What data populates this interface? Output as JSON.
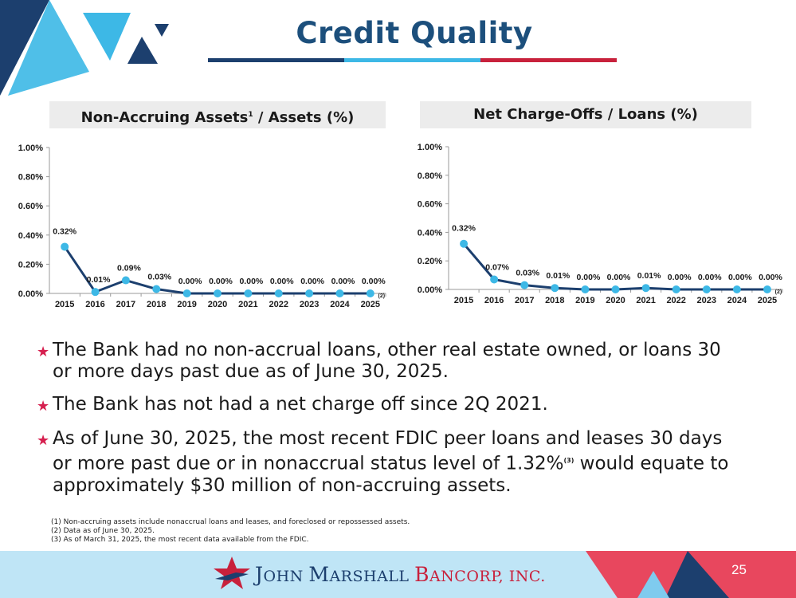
{
  "slide": {
    "title": "Credit Quality",
    "page_number": "25",
    "colors": {
      "navy": "#1c3f6e",
      "light_blue": "#3db8e6",
      "red": "#d6204f",
      "title_blue": "#1c4f7c"
    }
  },
  "chart_data": [
    {
      "type": "line",
      "title": "Non-Accruing Assets",
      "title_sup": "1",
      "title_suffix": " / Assets (%)",
      "categories": [
        "2015",
        "2016",
        "2017",
        "2018",
        "2019",
        "2020",
        "2021",
        "2022",
        "2023",
        "2024",
        "2025"
      ],
      "series": [
        {
          "values": [
            0.32,
            0.01,
            0.09,
            0.03,
            0.0,
            0.0,
            0.0,
            0.0,
            0.0,
            0.0,
            0.0
          ]
        }
      ],
      "data_labels": [
        "0.32%",
        "0.01%",
        "0.09%",
        "0.03%",
        "0.00%",
        "0.00%",
        "0.00%",
        "0.00%",
        "0.00%",
        "0.00%",
        "0.00%"
      ],
      "ylim": [
        0,
        1.0
      ],
      "y_ticks": [
        "0.00%",
        "0.20%",
        "0.40%",
        "0.60%",
        "0.80%",
        "1.00%"
      ],
      "last_category_note": "(2)",
      "grid": false,
      "line_color": "#1c3f6e",
      "marker_color": "#3db8e6"
    },
    {
      "type": "line",
      "title": "Net Charge-Offs / Loans (%)",
      "categories": [
        "2015",
        "2016",
        "2017",
        "2018",
        "2019",
        "2020",
        "2021",
        "2022",
        "2023",
        "2024",
        "2025"
      ],
      "series": [
        {
          "values": [
            0.32,
            0.07,
            0.03,
            0.01,
            0.0,
            0.0,
            0.01,
            0.0,
            0.0,
            0.0,
            0.0
          ]
        }
      ],
      "data_labels": [
        "0.32%",
        "0.07%",
        "0.03%",
        "0.01%",
        "0.00%",
        "0.00%",
        "0.01%",
        "0.00%",
        "0.00%",
        "0.00%",
        "0.00%"
      ],
      "ylim": [
        0,
        1.0
      ],
      "y_ticks": [
        "0.00%",
        "0.20%",
        "0.40%",
        "0.60%",
        "0.80%",
        "1.00%"
      ],
      "last_category_note": "(2)",
      "grid": false,
      "line_color": "#1c3f6e",
      "marker_color": "#3db8e6"
    }
  ],
  "bullets": [
    {
      "text": "The Bank had no non-accrual loans, other real estate owned, or loans 30 or more days past due as of June 30, 2025."
    },
    {
      "text": "The Bank has not had a net charge off since 2Q 2021."
    },
    {
      "text_before": "As of June 30, 2025, the most recent FDIC peer loans and leases 30 days or more past due or in nonaccrual status level of 1.32%",
      "sup": "(3)",
      "text_after": " would equate to approximately $30 million of non-accruing assets."
    }
  ],
  "footnotes": [
    "(1) Non-accruing assets include nonaccrual loans and leases, and foreclosed or repossessed assets.",
    "(2) Data as of June 30, 2025.",
    "(3) As of March 31, 2025, the most recent data available from the FDIC."
  ],
  "logo": {
    "part1_initial_1": "J",
    "part1_rest_1": "OHN ",
    "part1_initial_2": "M",
    "part1_rest_2": "ARSHALL ",
    "part2_initial": "B",
    "part2_rest": "ANCORP, INC."
  }
}
